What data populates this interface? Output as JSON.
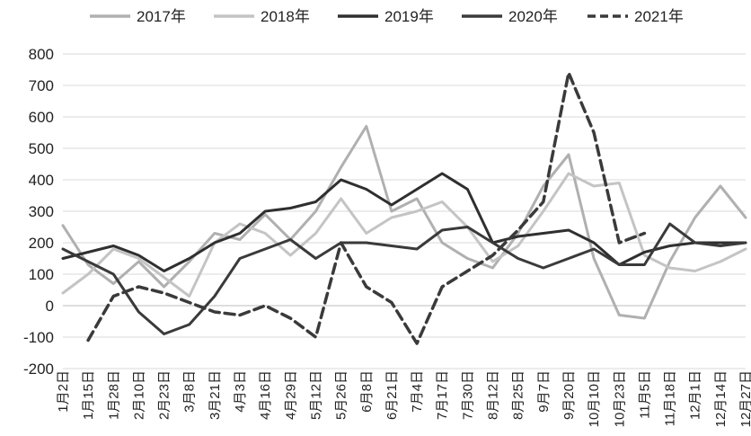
{
  "chart_data": {
    "type": "line",
    "title": "",
    "xlabel": "",
    "ylabel": "",
    "ylim": [
      -200,
      800
    ],
    "yticks": [
      -200,
      -100,
      0,
      100,
      200,
      300,
      400,
      500,
      600,
      700,
      800
    ],
    "grid": "horizontal",
    "legend": "top",
    "x_categories": [
      "1月2日",
      "1月15日",
      "1月28日",
      "2月10日",
      "2月23日",
      "3月8日",
      "3月21日",
      "4月3日",
      "4月16日",
      "4月29日",
      "5月12日",
      "5月26日",
      "6月8日",
      "6月21日",
      "7月4日",
      "7月17日",
      "7月30日",
      "8月12日",
      "8月25日",
      "9月7日",
      "9月20日",
      "10月10日",
      "10月23日",
      "11月5日",
      "11月18日",
      "12月1日",
      "12月14日",
      "12月27日"
    ],
    "series": [
      {
        "name": "2017年",
        "color": "#b0b0b0",
        "dash": false,
        "values": [
          255,
          130,
          70,
          140,
          60,
          140,
          230,
          210,
          290,
          210,
          300,
          440,
          570,
          300,
          340,
          200,
          150,
          120,
          230,
          380,
          480,
          150,
          -30,
          -40,
          140,
          280,
          380,
          280
        ]
      },
      {
        "name": "2018年",
        "color": "#c4c4c4",
        "dash": false,
        "values": [
          40,
          100,
          180,
          150,
          90,
          30,
          200,
          260,
          230,
          160,
          230,
          340,
          230,
          280,
          300,
          330,
          250,
          140,
          190,
          300,
          420,
          380,
          390,
          160,
          120,
          110,
          140,
          180
        ]
      },
      {
        "name": "2019年",
        "color": "#2f2f2f",
        "dash": false,
        "values": [
          150,
          170,
          190,
          160,
          110,
          150,
          200,
          230,
          300,
          310,
          330,
          400,
          370,
          320,
          370,
          420,
          370,
          200,
          220,
          230,
          240,
          200,
          130,
          170,
          190,
          200,
          200,
          200
        ]
      },
      {
        "name": "2020年",
        "color": "#3a3a3a",
        "dash": false,
        "values": [
          180,
          140,
          100,
          -20,
          -90,
          -60,
          30,
          150,
          180,
          210,
          150,
          200,
          200,
          190,
          180,
          240,
          250,
          200,
          150,
          120,
          150,
          180,
          130,
          130,
          260,
          200,
          190,
          200
        ]
      },
      {
        "name": "2021年",
        "color": "#3a3a3a",
        "dash": true,
        "values": [
          null,
          -110,
          30,
          60,
          40,
          10,
          -20,
          -30,
          0,
          -40,
          -100,
          200,
          60,
          10,
          -120,
          60,
          110,
          160,
          240,
          330,
          740,
          550,
          200,
          230,
          null,
          null,
          null,
          null
        ]
      }
    ]
  }
}
